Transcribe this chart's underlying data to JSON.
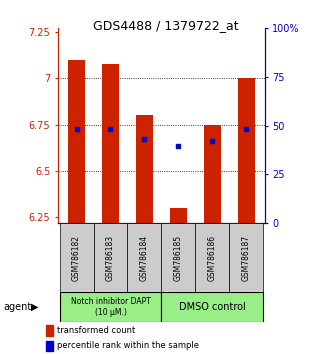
{
  "title": "GDS4488 / 1379722_at",
  "samples": [
    "GSM786182",
    "GSM786183",
    "GSM786184",
    "GSM786185",
    "GSM786186",
    "GSM786187"
  ],
  "red_bar_tops": [
    7.1,
    7.08,
    6.8,
    6.3,
    6.75,
    7.0
  ],
  "red_bar_bottoms": [
    6.22,
    6.22,
    6.22,
    6.22,
    6.22,
    6.22
  ],
  "blue_dot_values": [
    6.725,
    6.725,
    6.675,
    6.635,
    6.66,
    6.725
  ],
  "blue_dot_visible": [
    true,
    true,
    true,
    true,
    true,
    true
  ],
  "ylim_left": [
    6.22,
    7.27
  ],
  "ylim_right": [
    0,
    100
  ],
  "yticks_left": [
    6.25,
    6.5,
    6.75,
    7.0,
    7.25
  ],
  "yticks_right": [
    0,
    25,
    50,
    75,
    100
  ],
  "ytick_labels_left": [
    "6.25",
    "6.5",
    "6.75",
    "7",
    "7.25"
  ],
  "ytick_labels_right": [
    "0",
    "25",
    "50",
    "75",
    "100%"
  ],
  "bar_color": "#cc2200",
  "dot_color": "#0000cc",
  "group1_label": "Notch inhibitor DAPT\n(10 μM.)",
  "group2_label": "DMSO control",
  "group1_indices": [
    0,
    1,
    2
  ],
  "group2_indices": [
    3,
    4,
    5
  ],
  "group_bg_color": "#99ee88",
  "sample_bg_color": "#cccccc",
  "legend_red": "transformed count",
  "legend_blue": "percentile rank within the sample",
  "agent_label": "agent",
  "bar_width": 0.5,
  "title_fontsize": 9
}
